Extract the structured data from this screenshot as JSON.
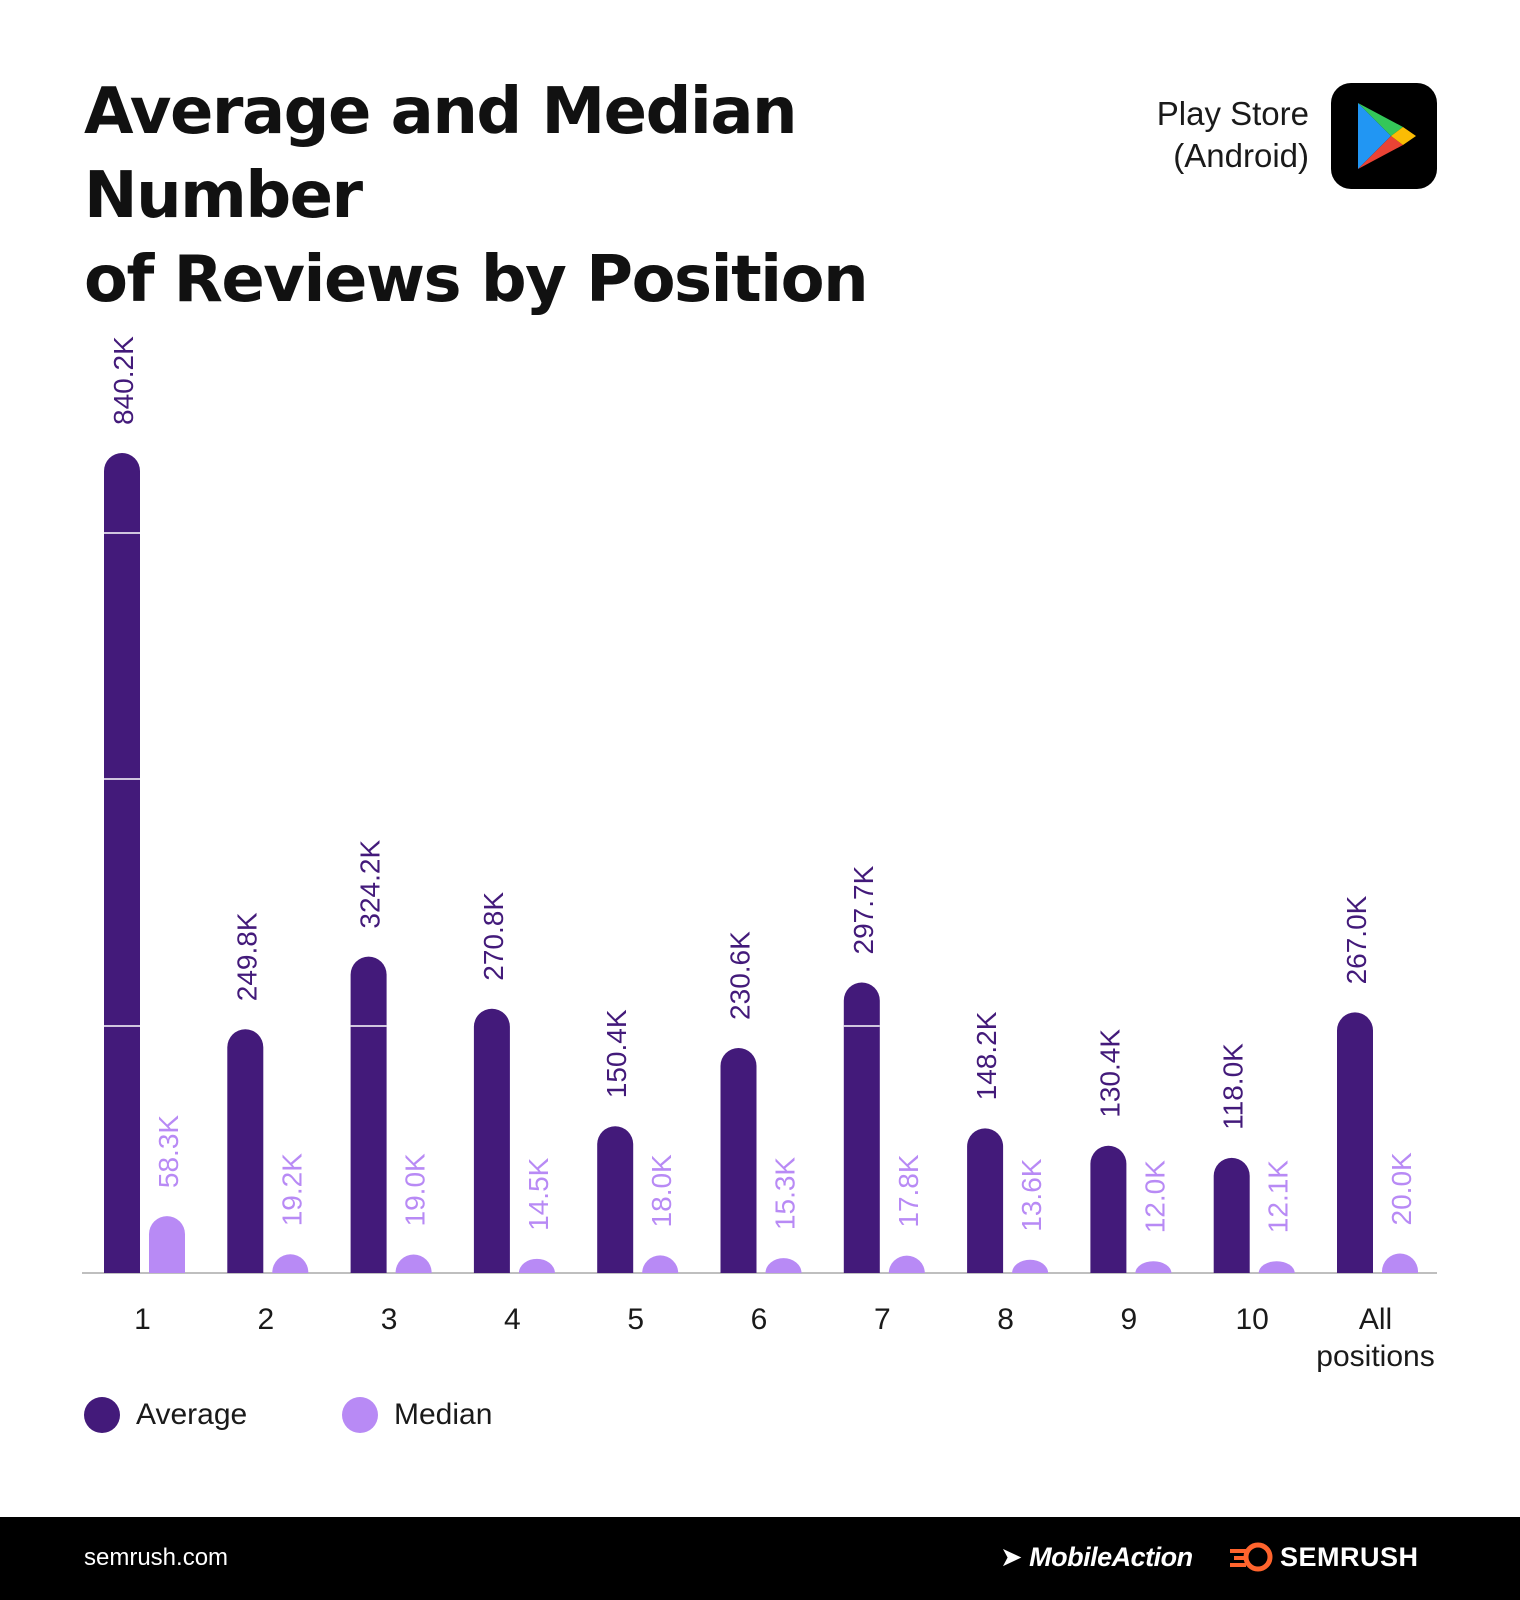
{
  "header": {
    "title_line1": "Average and Median Number",
    "title_line2": "of Reviews by Position",
    "store_line1": "Play Store",
    "store_line2": "(Android)"
  },
  "colors": {
    "average": "#431a7a",
    "median": "#b88af5",
    "axis": "#bfbfbf",
    "text": "#111111"
  },
  "chart_data": {
    "type": "bar",
    "title": "Average and Median Number of Reviews by Position",
    "xlabel": "",
    "ylabel": "",
    "categories": [
      "1",
      "2",
      "3",
      "4",
      "5",
      "6",
      "7",
      "8",
      "9",
      "10",
      "All positions"
    ],
    "category_lines": [
      [
        "1"
      ],
      [
        "2"
      ],
      [
        "3"
      ],
      [
        "4"
      ],
      [
        "5"
      ],
      [
        "6"
      ],
      [
        "7"
      ],
      [
        "8"
      ],
      [
        "9"
      ],
      [
        "10"
      ],
      [
        "All",
        "positions"
      ]
    ],
    "series": [
      {
        "name": "Average",
        "values": [
          840.2,
          249.8,
          324.2,
          270.8,
          150.4,
          230.6,
          297.7,
          148.2,
          130.4,
          118.0,
          267.0
        ],
        "labels": [
          "840.2K",
          "249.8K",
          "324.2K",
          "270.8K",
          "150.4K",
          "230.6K",
          "297.7K",
          "148.2K",
          "130.4K",
          "118.0K",
          "267.0K"
        ]
      },
      {
        "name": "Median",
        "values": [
          58.3,
          19.2,
          19.0,
          14.5,
          18.0,
          15.3,
          17.8,
          13.6,
          12.0,
          12.1,
          20.0
        ],
        "labels": [
          "58.3K",
          "19.2K",
          "19.0K",
          "14.5K",
          "18.0K",
          "15.3K",
          "17.8K",
          "13.6K",
          "12.0K",
          "12.1K",
          "20.0K"
        ]
      }
    ],
    "units": "thousands of reviews",
    "ylim": [
      0,
      840.2
    ],
    "grid": false,
    "legend": "bottom-left"
  },
  "legend": {
    "average": "Average",
    "median": "Median"
  },
  "footer": {
    "site": "semrush.com",
    "brand1": "MobileAction",
    "brand2": "SEMRUSH"
  }
}
